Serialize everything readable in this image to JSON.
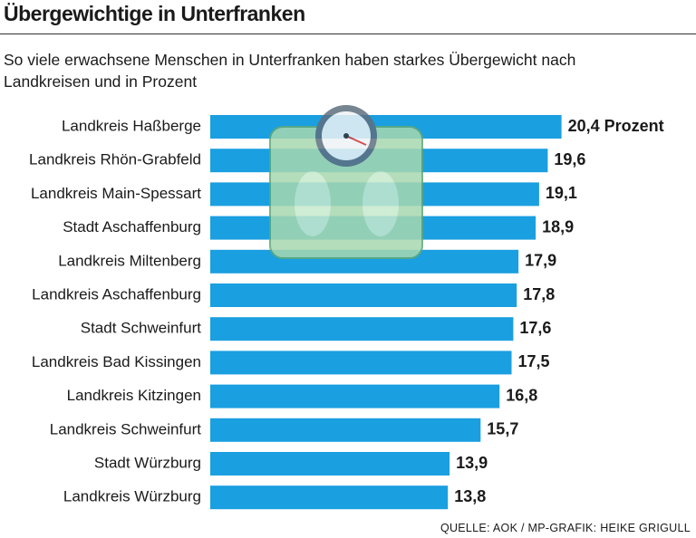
{
  "chart_data": {
    "type": "bar",
    "orientation": "horizontal",
    "title": "Übergewichtige in Unterfranken",
    "subtitle": "So viele erwachsene Menschen in Unterfranken haben starkes Übergewicht nach Landkreisen und in Prozent",
    "categories": [
      "Landkreis Haßberge",
      "Landkreis Rhön-Grabfeld",
      "Landkreis Main-Spessart",
      "Stadt Aschaffenburg",
      "Landkreis Miltenberg",
      "Landkreis Aschaffenburg",
      "Stadt Schweinfurt",
      "Landkreis Bad Kissingen",
      "Landkreis Kitzingen",
      "Landkreis Schweinfurt",
      "Stadt Würzburg",
      "Landkreis Würzburg"
    ],
    "values": [
      20.4,
      19.6,
      19.1,
      18.9,
      17.9,
      17.8,
      17.6,
      17.5,
      16.8,
      15.7,
      13.9,
      13.8
    ],
    "value_labels": [
      "20,4 Prozent",
      "19,6",
      "19,1",
      "18,9",
      "17,9",
      "17,8",
      "17,6",
      "17,5",
      "16,8",
      "15,7",
      "13,9",
      "13,8"
    ],
    "color": "#1a9fe0",
    "source": "QUELLE: AOK / MP-GRAFIK: HEIKE GRIGULL"
  }
}
